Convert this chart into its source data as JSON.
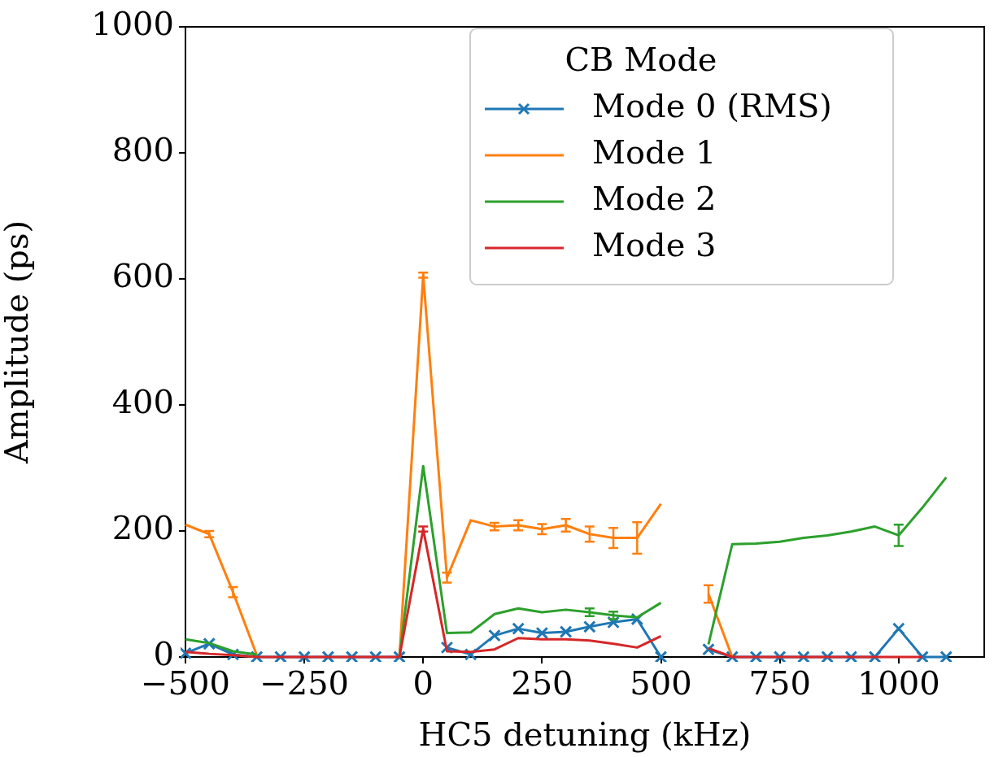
{
  "chart_data": {
    "type": "line",
    "xlabel": "HC5 detuning (kHz)",
    "ylabel": "Amplitude (ps)",
    "legend_title": "CB Mode",
    "x": [
      -500,
      -450,
      -400,
      -350,
      -300,
      -250,
      -200,
      -150,
      -100,
      -50,
      0,
      50,
      100,
      150,
      200,
      250,
      300,
      350,
      400,
      450,
      500,
      550,
      600,
      650,
      700,
      750,
      800,
      850,
      900,
      950,
      1000,
      1050,
      1100
    ],
    "series": [
      {
        "name": "Mode 0 (RMS)",
        "color": "#1f77b4",
        "marker": "cross",
        "values": [
          6,
          21,
          4,
          0,
          0,
          0,
          0,
          0,
          0,
          0,
          null,
          15,
          4,
          34,
          45,
          38,
          40,
          48,
          55,
          60,
          0,
          null,
          12,
          0,
          0,
          0,
          0,
          0,
          0,
          0,
          45,
          0,
          0
        ]
      },
      {
        "name": "Mode 1",
        "color": "#ff7f0e",
        "marker": "none",
        "values": [
          210,
          195,
          103,
          3,
          null,
          null,
          null,
          null,
          null,
          0,
          606,
          126,
          217,
          207,
          209,
          203,
          209,
          195,
          189,
          189,
          243,
          null,
          100,
          0,
          null,
          null,
          null,
          null,
          null,
          null,
          null,
          null,
          null
        ],
        "errors": [
          null,
          5,
          8,
          null,
          null,
          null,
          null,
          null,
          null,
          null,
          4,
          8,
          null,
          6,
          8,
          8,
          10,
          12,
          16,
          25,
          null,
          null,
          14,
          null,
          null,
          null,
          null,
          null,
          null,
          null,
          null,
          null,
          null
        ]
      },
      {
        "name": "Mode 2",
        "color": "#2ca02c",
        "marker": "none",
        "values": [
          28,
          22,
          9,
          4,
          null,
          null,
          null,
          null,
          null,
          0,
          303,
          38,
          39,
          68,
          77,
          71,
          75,
          71,
          66,
          63,
          86,
          null,
          20,
          179,
          180,
          183,
          189,
          193,
          199,
          207,
          193,
          237,
          285
        ],
        "errors": [
          null,
          null,
          null,
          null,
          null,
          null,
          null,
          null,
          null,
          null,
          null,
          null,
          null,
          null,
          null,
          null,
          null,
          6,
          6,
          null,
          null,
          null,
          null,
          null,
          null,
          null,
          null,
          null,
          null,
          null,
          17,
          null,
          null
        ]
      },
      {
        "name": "Mode 3",
        "color": "#d62728",
        "marker": "none",
        "values": [
          8,
          5,
          3,
          0,
          0,
          0,
          0,
          0,
          0,
          0,
          203,
          9,
          8,
          12,
          30,
          28,
          28,
          26,
          21,
          15,
          33,
          null,
          14,
          0,
          0,
          0,
          0,
          0,
          0,
          0,
          0,
          0,
          null
        ],
        "errors": [
          null,
          null,
          null,
          null,
          null,
          null,
          null,
          null,
          null,
          null,
          4,
          null,
          null,
          null,
          null,
          null,
          null,
          null,
          null,
          null,
          null,
          null,
          null,
          null,
          null,
          null,
          null,
          null,
          null,
          null,
          null,
          null,
          null
        ]
      }
    ],
    "xlim": [
      -500,
      1180
    ],
    "xticks": [
      {
        "value": -500,
        "label": "−500"
      },
      {
        "value": -250,
        "label": "−250"
      },
      0,
      250,
      500,
      750,
      1000
    ],
    "ylim": [
      0,
      1000
    ],
    "yticks": [
      0,
      200,
      400,
      600,
      800,
      1000
    ],
    "grid": false,
    "legend": "top right",
    "line_style": "solid"
  }
}
